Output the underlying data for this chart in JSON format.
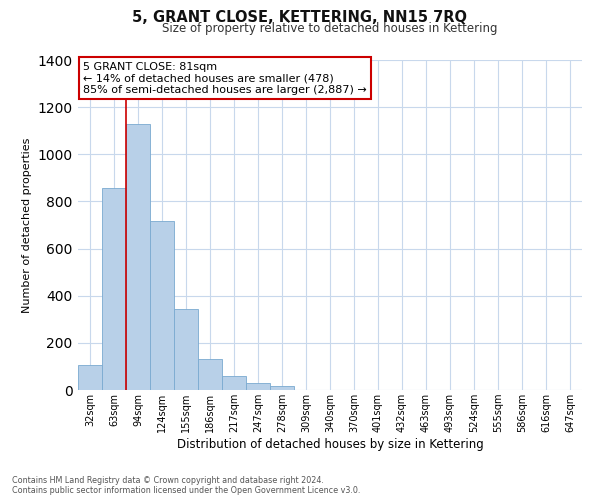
{
  "title": "5, GRANT CLOSE, KETTERING, NN15 7RQ",
  "subtitle": "Size of property relative to detached houses in Kettering",
  "xlabel": "Distribution of detached houses by size in Kettering",
  "ylabel": "Number of detached properties",
  "bar_labels": [
    "32sqm",
    "63sqm",
    "94sqm",
    "124sqm",
    "155sqm",
    "186sqm",
    "217sqm",
    "247sqm",
    "278sqm",
    "309sqm",
    "340sqm",
    "370sqm",
    "401sqm",
    "432sqm",
    "463sqm",
    "493sqm",
    "524sqm",
    "555sqm",
    "586sqm",
    "616sqm",
    "647sqm"
  ],
  "bar_values": [
    105,
    855,
    1130,
    715,
    345,
    130,
    58,
    28,
    15,
    0,
    0,
    0,
    0,
    0,
    0,
    0,
    0,
    0,
    0,
    0,
    0
  ],
  "bar_color": "#b8d0e8",
  "bar_edge_color": "#7aaad0",
  "annotation_text": "5 GRANT CLOSE: 81sqm\n← 14% of detached houses are smaller (478)\n85% of semi-detached houses are larger (2,887) →",
  "annotation_box_color": "#ffffff",
  "annotation_box_edge": "#cc0000",
  "vline_color": "#cc0000",
  "vline_x_bar_index": 1,
  "ylim": [
    0,
    1400
  ],
  "yticks": [
    0,
    200,
    400,
    600,
    800,
    1000,
    1200,
    1400
  ],
  "footer_line1": "Contains HM Land Registry data © Crown copyright and database right 2024.",
  "footer_line2": "Contains public sector information licensed under the Open Government Licence v3.0.",
  "bg_color": "#ffffff",
  "grid_color": "#c8d8ec",
  "bar_width": 1.0
}
